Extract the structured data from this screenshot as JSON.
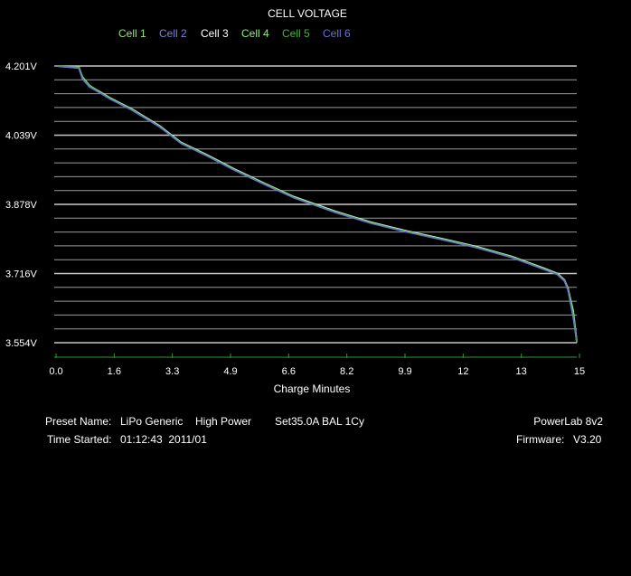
{
  "chart_data": {
    "type": "line",
    "title": "CELL VOLTAGE",
    "xlabel": "Charge Minutes",
    "ylabel": "",
    "xlim": [
      0,
      14.85
    ],
    "ylim": [
      3.554,
      4.201
    ],
    "x_ticks": [
      "0.0",
      "1.6",
      "3.3",
      "4.9",
      "6.6",
      "8.2",
      "9.9",
      "12",
      "13",
      "15"
    ],
    "y_ticks": [
      "4.201V",
      "4.039V",
      "3.878V",
      "3.716V",
      "3.554V"
    ],
    "grid": true,
    "legend": [
      {
        "name": "Cell 1",
        "color": "#9be27a"
      },
      {
        "name": "Cell 2",
        "color": "#7c7ee6"
      },
      {
        "name": "Cell 3",
        "color": "#ffffff"
      },
      {
        "name": "Cell 4",
        "color": "#8ef07e"
      },
      {
        "name": "Cell 5",
        "color": "#2fbf2f"
      },
      {
        "name": "Cell 6",
        "color": "#6f6fd0"
      }
    ],
    "series": [
      {
        "name": "Cell 1",
        "x": [
          0.0,
          0.7,
          0.8,
          1.0,
          1.3,
          1.6,
          2.2,
          3.0,
          3.6,
          4.4,
          5.1,
          6.0,
          6.8,
          8.0,
          9.0,
          10.0,
          11.0,
          12.0,
          13.0,
          13.5,
          13.9,
          14.3,
          14.5,
          14.6,
          14.75,
          14.85
        ],
        "y": [
          4.201,
          4.199,
          4.175,
          4.155,
          4.14,
          4.125,
          4.1,
          4.06,
          4.022,
          3.99,
          3.96,
          3.925,
          3.895,
          3.86,
          3.835,
          3.815,
          3.797,
          3.778,
          3.755,
          3.74,
          3.728,
          3.715,
          3.7,
          3.68,
          3.62,
          3.554
        ]
      },
      {
        "name": "Cell 2",
        "x": [
          0.0,
          0.7,
          0.8,
          1.0,
          1.3,
          1.6,
          2.2,
          3.0,
          3.6,
          4.4,
          5.1,
          6.0,
          6.8,
          8.0,
          9.0,
          10.0,
          11.0,
          12.0,
          13.0,
          13.5,
          13.9,
          14.3,
          14.5,
          14.6,
          14.75,
          14.85
        ],
        "y": [
          4.201,
          4.197,
          4.172,
          4.153,
          4.139,
          4.124,
          4.099,
          4.059,
          4.021,
          3.989,
          3.959,
          3.924,
          3.894,
          3.859,
          3.834,
          3.814,
          3.796,
          3.777,
          3.754,
          3.739,
          3.727,
          3.714,
          3.699,
          3.678,
          3.616,
          3.556
        ]
      },
      {
        "name": "Cell 3",
        "x": [
          0.0,
          0.7,
          0.8,
          1.0,
          1.3,
          1.6,
          2.2,
          3.0,
          3.6,
          4.4,
          5.1,
          6.0,
          6.8,
          8.0,
          9.0,
          10.0,
          11.0,
          12.0,
          13.0,
          13.5,
          13.9,
          14.3,
          14.5,
          14.6,
          14.75,
          14.85
        ],
        "y": [
          4.201,
          4.198,
          4.174,
          4.154,
          4.141,
          4.126,
          4.101,
          4.061,
          4.023,
          3.991,
          3.961,
          3.926,
          3.896,
          3.861,
          3.836,
          3.816,
          3.798,
          3.779,
          3.756,
          3.741,
          3.729,
          3.716,
          3.701,
          3.682,
          3.625,
          3.558
        ]
      },
      {
        "name": "Cell 4",
        "x": [
          0.0,
          0.7,
          0.8,
          1.0,
          1.3,
          1.6,
          2.2,
          3.0,
          3.6,
          4.4,
          5.1,
          6.0,
          6.8,
          8.0,
          9.0,
          10.0,
          11.0,
          12.0,
          13.0,
          13.5,
          13.9,
          14.3,
          14.5,
          14.6,
          14.75,
          14.85
        ],
        "y": [
          4.201,
          4.199,
          4.176,
          4.156,
          4.14,
          4.125,
          4.1,
          4.06,
          4.022,
          3.99,
          3.96,
          3.925,
          3.895,
          3.86,
          3.835,
          3.815,
          3.797,
          3.778,
          3.755,
          3.74,
          3.728,
          3.715,
          3.7,
          3.681,
          3.63,
          3.56
        ]
      },
      {
        "name": "Cell 5",
        "x": [
          0.0,
          0.7,
          0.8,
          1.0,
          1.3,
          1.6,
          2.2,
          3.0,
          3.6,
          4.4,
          5.1,
          6.0,
          6.8,
          8.0,
          9.0,
          10.0,
          11.0,
          12.0,
          13.0,
          13.5,
          13.9,
          14.3,
          14.5,
          14.6,
          14.75,
          14.85
        ],
        "y": [
          4.201,
          4.198,
          4.173,
          4.154,
          4.139,
          4.124,
          4.099,
          4.059,
          4.021,
          3.989,
          3.959,
          3.924,
          3.894,
          3.859,
          3.834,
          3.814,
          3.796,
          3.777,
          3.754,
          3.739,
          3.727,
          3.714,
          3.699,
          3.679,
          3.618,
          3.555
        ]
      },
      {
        "name": "Cell 6",
        "x": [
          0.0,
          0.7,
          0.8,
          1.0,
          1.3,
          1.6,
          2.2,
          3.0,
          3.6,
          4.4,
          5.1,
          6.0,
          6.8,
          8.0,
          9.0,
          10.0,
          11.0,
          12.0,
          13.0,
          13.5,
          13.9,
          14.3,
          14.5,
          14.6,
          14.75,
          14.85
        ],
        "y": [
          4.201,
          4.196,
          4.171,
          4.152,
          4.138,
          4.123,
          4.098,
          4.058,
          4.02,
          3.988,
          3.958,
          3.923,
          3.893,
          3.858,
          3.833,
          3.813,
          3.795,
          3.776,
          3.753,
          3.738,
          3.726,
          3.713,
          3.698,
          3.677,
          3.612,
          3.557
        ]
      }
    ]
  },
  "info": {
    "preset_label": "Preset Name:",
    "preset_value": "LiPo Generic",
    "power": "High Power",
    "settings": "Set35.0A BAL 1Cy",
    "time_label": "Time Started:",
    "time_value": "01:12:43  2011/01",
    "device": "PowerLab 8v2",
    "firmware_label": "Firmware:",
    "firmware_value": "V3.20"
  }
}
